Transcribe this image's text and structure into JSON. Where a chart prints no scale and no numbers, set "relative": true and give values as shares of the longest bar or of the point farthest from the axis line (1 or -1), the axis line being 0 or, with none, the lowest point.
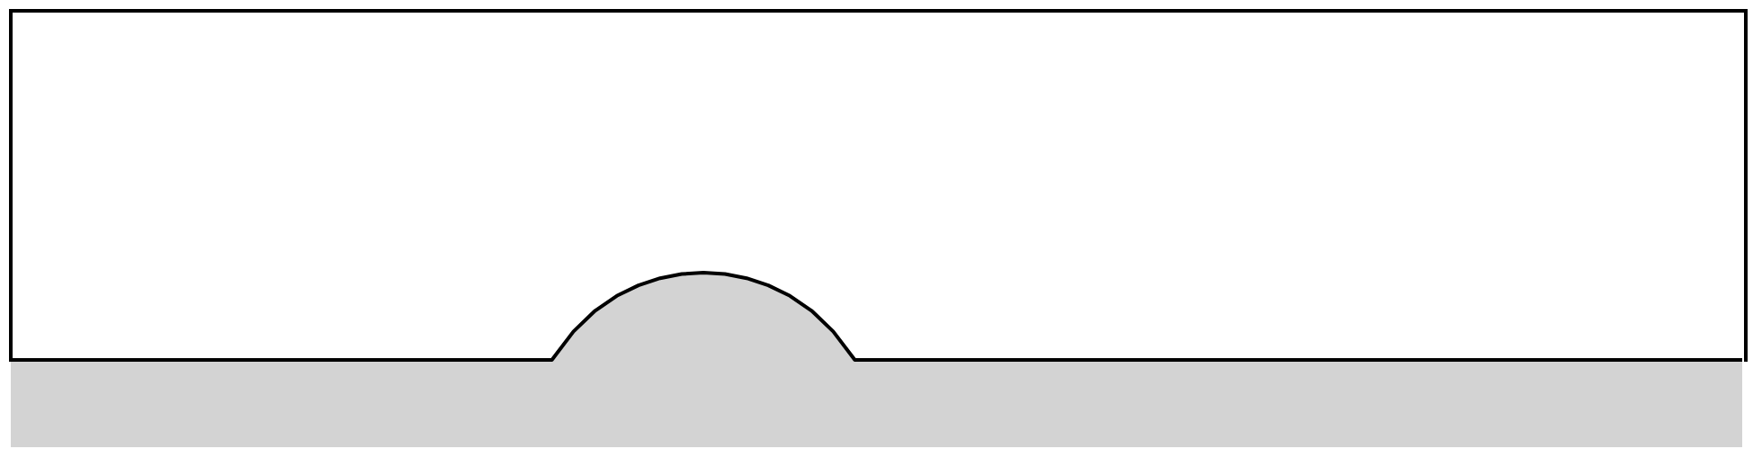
{
  "chart_data": {
    "type": "area",
    "relative": true,
    "grid": false,
    "legend": false,
    "categories": [
      null,
      null,
      null,
      null,
      null,
      null,
      null,
      null,
      null,
      null,
      null,
      null,
      null,
      null,
      null,
      null,
      null,
      null,
      null,
      null,
      null,
      null,
      null,
      null,
      null,
      null,
      null,
      null,
      null,
      null,
      null,
      null,
      null,
      null,
      null,
      null,
      null,
      null,
      null,
      null,
      null,
      null,
      null,
      null,
      null,
      null,
      null,
      null,
      null,
      null,
      null,
      null,
      null,
      null,
      null,
      null,
      null,
      null,
      null,
      null,
      null,
      null,
      null,
      null,
      null,
      null,
      null,
      null,
      null,
      null,
      null,
      null,
      null,
      null,
      null,
      null,
      null,
      null,
      null,
      null,
      null
    ],
    "series": [
      {
        "color": "#d3d3d3",
        "values": [
          0.5,
          0.5,
          0.5,
          0.5,
          0.5,
          0.5,
          0.5,
          0.5,
          0.5,
          0.5,
          0.5,
          0.5,
          0.5,
          0.5,
          0.5,
          0.5,
          0.5,
          0.5,
          0.5,
          0.5,
          0.5,
          0.5,
          0.5,
          0.5,
          0.5,
          0.5,
          0.663,
          0.782,
          0.867,
          0.927,
          0.968,
          0.992,
          1,
          0.992,
          0.968,
          0.927,
          0.867,
          0.782,
          0.663,
          0.5,
          0.5,
          0.5,
          0.5,
          0.5,
          0.5,
          0.5,
          0.5,
          0.5,
          0.5,
          0.5,
          0.5,
          0.5,
          0.5,
          0.5,
          0.5,
          0.5,
          0.5,
          0.5,
          0.5,
          0.5,
          0.5,
          0.5,
          0.5,
          0.5,
          0.5,
          0.5,
          0.5,
          0.5,
          0.5,
          0.5,
          0.5,
          0.5,
          0.5,
          0.5,
          0.5,
          0.5,
          0.5,
          0.5,
          0.5,
          0.5,
          0.5
        ]
      }
    ]
  }
}
